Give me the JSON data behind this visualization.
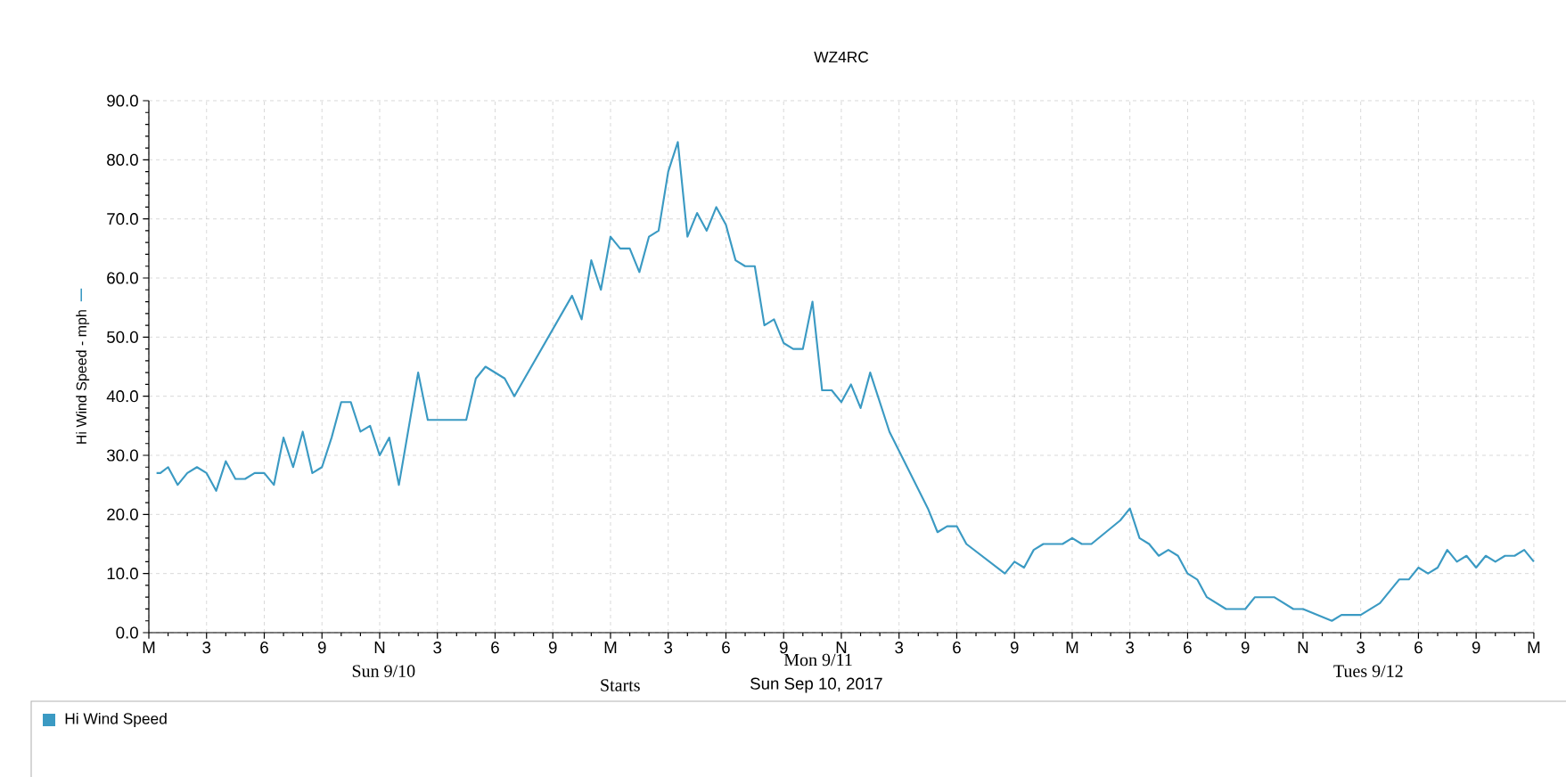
{
  "chart_data": {
    "type": "line",
    "title": "WZ4RC",
    "xlabel": "Sun Sep 10, 2017",
    "ylabel": "Hi Wind Speed - mph",
    "annotations": [
      "Sun 9/10",
      "Mon 9/11",
      "Tues 9/12",
      "Starts"
    ],
    "xlim": [
      "2017-09-10T00:00",
      "2017-09-13T00:00"
    ],
    "xticks": [
      {
        "value": "2017-09-10T00:00",
        "label": "M"
      },
      {
        "value": "2017-09-10T03:00",
        "label": "3"
      },
      {
        "value": "2017-09-10T06:00",
        "label": "6"
      },
      {
        "value": "2017-09-10T09:00",
        "label": "9"
      },
      {
        "value": "2017-09-10T12:00",
        "label": "N"
      },
      {
        "value": "2017-09-10T15:00",
        "label": "3"
      },
      {
        "value": "2017-09-10T18:00",
        "label": "6"
      },
      {
        "value": "2017-09-10T21:00",
        "label": "9"
      },
      {
        "value": "2017-09-11T00:00",
        "label": "M"
      },
      {
        "value": "2017-09-11T03:00",
        "label": "3"
      },
      {
        "value": "2017-09-11T06:00",
        "label": "6"
      },
      {
        "value": "2017-09-11T09:00",
        "label": "9"
      },
      {
        "value": "2017-09-11T12:00",
        "label": "N"
      },
      {
        "value": "2017-09-11T15:00",
        "label": "3"
      },
      {
        "value": "2017-09-11T18:00",
        "label": "6"
      },
      {
        "value": "2017-09-11T21:00",
        "label": "9"
      },
      {
        "value": "2017-09-12T00:00",
        "label": "M"
      },
      {
        "value": "2017-09-12T03:00",
        "label": "3"
      },
      {
        "value": "2017-09-12T06:00",
        "label": "6"
      },
      {
        "value": "2017-09-12T09:00",
        "label": "9"
      },
      {
        "value": "2017-09-12T12:00",
        "label": "N"
      },
      {
        "value": "2017-09-12T15:00",
        "label": "3"
      },
      {
        "value": "2017-09-12T18:00",
        "label": "6"
      },
      {
        "value": "2017-09-12T21:00",
        "label": "9"
      },
      {
        "value": "2017-09-13T00:00",
        "label": "M"
      }
    ],
    "ylim": [
      0,
      90
    ],
    "yticks": [
      {
        "value": 0,
        "label": "0.0"
      },
      {
        "value": 10,
        "label": "10.0"
      },
      {
        "value": 20,
        "label": "20.0"
      },
      {
        "value": 30,
        "label": "30.0"
      },
      {
        "value": 40,
        "label": "40.0"
      },
      {
        "value": 50,
        "label": "50.0"
      },
      {
        "value": 60,
        "label": "60.0"
      },
      {
        "value": 70,
        "label": "70.0"
      },
      {
        "value": 80,
        "label": "80.0"
      },
      {
        "value": 90,
        "label": "90.0"
      }
    ],
    "grid": true,
    "legend": "bottom",
    "marker": "none",
    "line_style": "solid",
    "series": [
      {
        "name": "Hi Wind Speed",
        "color": "#3b9ac3",
        "x": [
          "2017-09-10T00:24",
          "2017-09-10T00:36",
          "2017-09-10T01:00",
          "2017-09-10T01:30",
          "2017-09-10T02:00",
          "2017-09-10T02:30",
          "2017-09-10T03:00",
          "2017-09-10T03:30",
          "2017-09-10T04:00",
          "2017-09-10T04:30",
          "2017-09-10T05:00",
          "2017-09-10T05:30",
          "2017-09-10T06:00",
          "2017-09-10T06:30",
          "2017-09-10T07:00",
          "2017-09-10T07:30",
          "2017-09-10T08:00",
          "2017-09-10T08:30",
          "2017-09-10T09:00",
          "2017-09-10T09:30",
          "2017-09-10T10:00",
          "2017-09-10T10:30",
          "2017-09-10T11:00",
          "2017-09-10T11:30",
          "2017-09-10T12:00",
          "2017-09-10T12:30",
          "2017-09-10T13:00",
          "2017-09-10T14:00",
          "2017-09-10T14:30",
          "2017-09-10T16:30",
          "2017-09-10T17:00",
          "2017-09-10T17:30",
          "2017-09-10T18:30",
          "2017-09-10T19:00",
          "2017-09-10T22:00",
          "2017-09-10T22:30",
          "2017-09-10T23:00",
          "2017-09-10T23:30",
          "2017-09-11T00:00",
          "2017-09-11T00:30",
          "2017-09-11T01:00",
          "2017-09-11T01:30",
          "2017-09-11T02:00",
          "2017-09-11T02:30",
          "2017-09-11T03:00",
          "2017-09-11T03:30",
          "2017-09-11T04:00",
          "2017-09-11T04:30",
          "2017-09-11T05:00",
          "2017-09-11T05:30",
          "2017-09-11T06:00",
          "2017-09-11T06:30",
          "2017-09-11T07:00",
          "2017-09-11T07:30",
          "2017-09-11T08:00",
          "2017-09-11T08:30",
          "2017-09-11T09:00",
          "2017-09-11T09:30",
          "2017-09-11T10:00",
          "2017-09-11T10:30",
          "2017-09-11T11:00",
          "2017-09-11T11:30",
          "2017-09-11T12:00",
          "2017-09-11T12:30",
          "2017-09-11T13:00",
          "2017-09-11T13:30",
          "2017-09-11T14:30",
          "2017-09-11T16:30",
          "2017-09-11T17:00",
          "2017-09-11T17:30",
          "2017-09-11T18:00",
          "2017-09-11T18:30",
          "2017-09-11T20:30",
          "2017-09-11T21:00",
          "2017-09-11T21:30",
          "2017-09-11T22:00",
          "2017-09-11T22:30",
          "2017-09-11T23:30",
          "2017-09-12T00:00",
          "2017-09-12T00:30",
          "2017-09-12T01:00",
          "2017-09-12T02:30",
          "2017-09-12T03:00",
          "2017-09-12T03:30",
          "2017-09-12T04:00",
          "2017-09-12T04:30",
          "2017-09-12T05:00",
          "2017-09-12T05:30",
          "2017-09-12T06:00",
          "2017-09-12T06:30",
          "2017-09-12T07:00",
          "2017-09-12T08:00",
          "2017-09-12T09:00",
          "2017-09-12T09:30",
          "2017-09-12T10:30",
          "2017-09-12T11:30",
          "2017-09-12T12:00",
          "2017-09-12T13:30",
          "2017-09-12T14:00",
          "2017-09-12T15:00",
          "2017-09-12T16:00",
          "2017-09-12T17:00",
          "2017-09-12T17:30",
          "2017-09-12T18:00",
          "2017-09-12T18:30",
          "2017-09-12T19:00",
          "2017-09-12T19:30",
          "2017-09-12T20:00",
          "2017-09-12T20:30",
          "2017-09-12T21:00",
          "2017-09-12T21:30",
          "2017-09-12T22:00",
          "2017-09-12T22:30",
          "2017-09-12T23:00",
          "2017-09-12T23:30",
          "2017-09-13T00:00"
        ],
        "values": [
          27,
          27,
          28,
          25,
          27,
          28,
          27,
          24,
          29,
          26,
          26,
          27,
          27,
          25,
          33,
          28,
          34,
          27,
          28,
          33,
          39,
          39,
          34,
          35,
          30,
          33,
          25,
          44,
          36,
          36,
          43,
          45,
          43,
          40,
          57,
          53,
          63,
          58,
          67,
          65,
          65,
          61,
          67,
          68,
          78,
          83,
          67,
          71,
          68,
          72,
          69,
          63,
          62,
          62,
          52,
          53,
          49,
          48,
          48,
          56,
          41,
          41,
          39,
          42,
          38,
          44,
          34,
          21,
          17,
          18,
          18,
          15,
          10,
          12,
          11,
          14,
          15,
          15,
          16,
          15,
          15,
          19,
          21,
          16,
          15,
          13,
          14,
          13,
          10,
          9,
          6,
          4,
          4,
          6,
          6,
          4,
          4,
          2,
          3,
          3,
          5,
          9,
          9,
          11,
          10,
          11,
          14,
          12,
          13,
          11,
          13,
          12,
          13,
          13,
          14,
          12
        ]
      }
    ]
  }
}
